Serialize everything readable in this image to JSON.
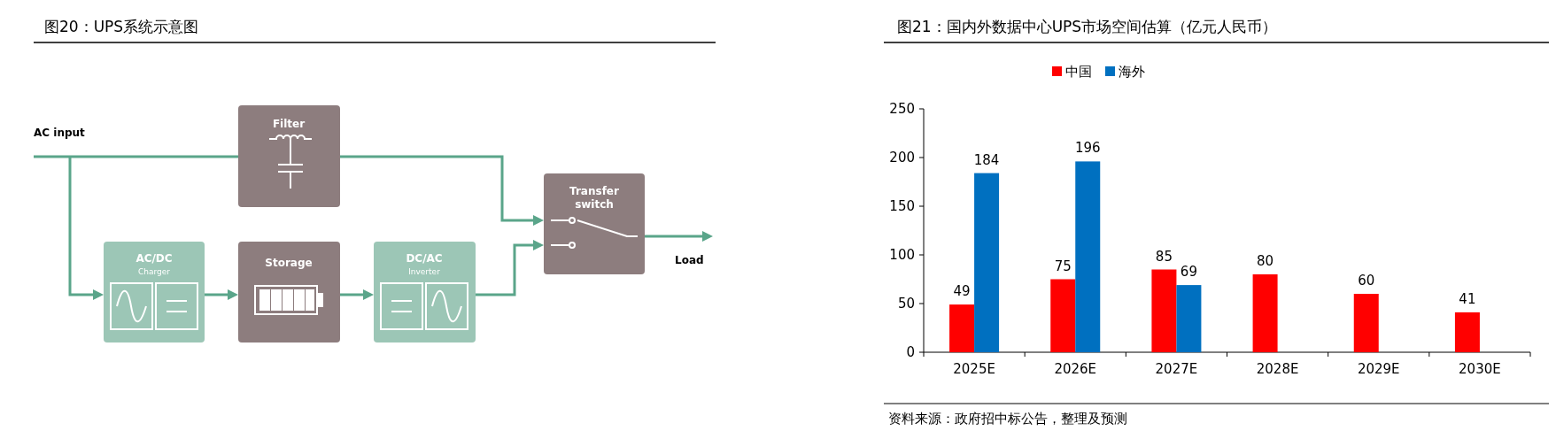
{
  "chart_data": [
    {
      "type": "other",
      "title": "图20：UPS系统示意图",
      "annotations": [
        "AC input",
        "Filter",
        "AC/DC",
        "Charger",
        "Storage",
        "DC/AC",
        "Inverter",
        "Transfer switch",
        "Load"
      ]
    },
    {
      "type": "bar",
      "title": "图21：国内外数据中心UPS市场空间估算（亿元人民币）",
      "categories": [
        "2025E",
        "2026E",
        "2027E",
        "2028E",
        "2029E",
        "2030E"
      ],
      "series": [
        {
          "name": "中国",
          "color": "#ff0000",
          "values": [
            49,
            75,
            85,
            80,
            60,
            41
          ]
        },
        {
          "name": "海外",
          "color": "#0070c0",
          "values": [
            184,
            196,
            69,
            null,
            null,
            null
          ]
        }
      ],
      "ylim": [
        0,
        250
      ],
      "yticks": [
        0,
        50,
        100,
        150,
        200,
        250
      ],
      "grid": false,
      "legend": "top",
      "data_labels": true,
      "annotations": [
        "资料来源：政府招中标公告，整理及预测"
      ]
    }
  ]
}
